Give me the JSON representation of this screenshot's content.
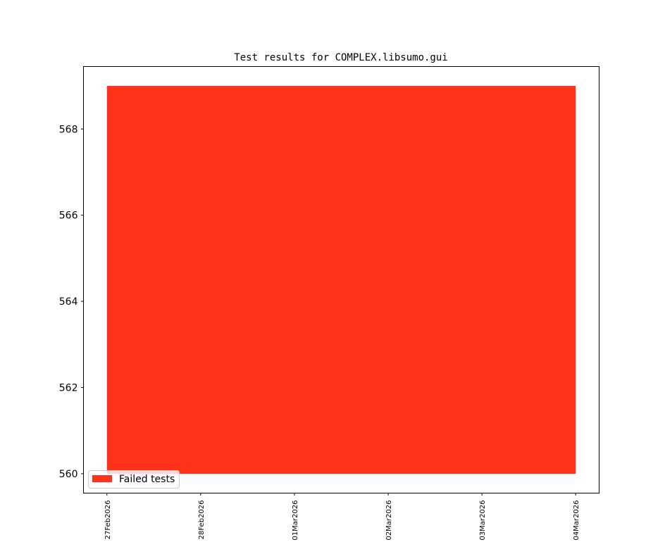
{
  "chart_data": {
    "type": "area",
    "title": "Test results for COMPLEX.libsumo.gui",
    "xlabel": "",
    "ylabel": "",
    "x": [
      "27Feb2026",
      "28Feb2026",
      "01Mar2026",
      "02Mar2026",
      "03Mar2026",
      "04Mar2026"
    ],
    "x_tick_labels": [
      "27Feb2026",
      "28Feb2026",
      "01Mar2026",
      "02Mar2026",
      "03Mar2026",
      "04Mar2026"
    ],
    "series": [
      {
        "name": "Failed tests",
        "values": [
          569,
          569,
          569,
          569,
          569,
          569
        ],
        "baseline": 560,
        "color": "#ff331a"
      }
    ],
    "ylim": [
      559.55,
      569.45
    ],
    "xlim": [
      "26Feb2026 18:00",
      "04Mar2026 06:00"
    ],
    "y_ticks": [
      560,
      562,
      564,
      566,
      568
    ],
    "y_tick_labels": [
      "560",
      "562",
      "564",
      "566",
      "568"
    ],
    "grid": false,
    "legend": {
      "placement": "lower-left",
      "entries": [
        "Failed tests"
      ]
    }
  }
}
